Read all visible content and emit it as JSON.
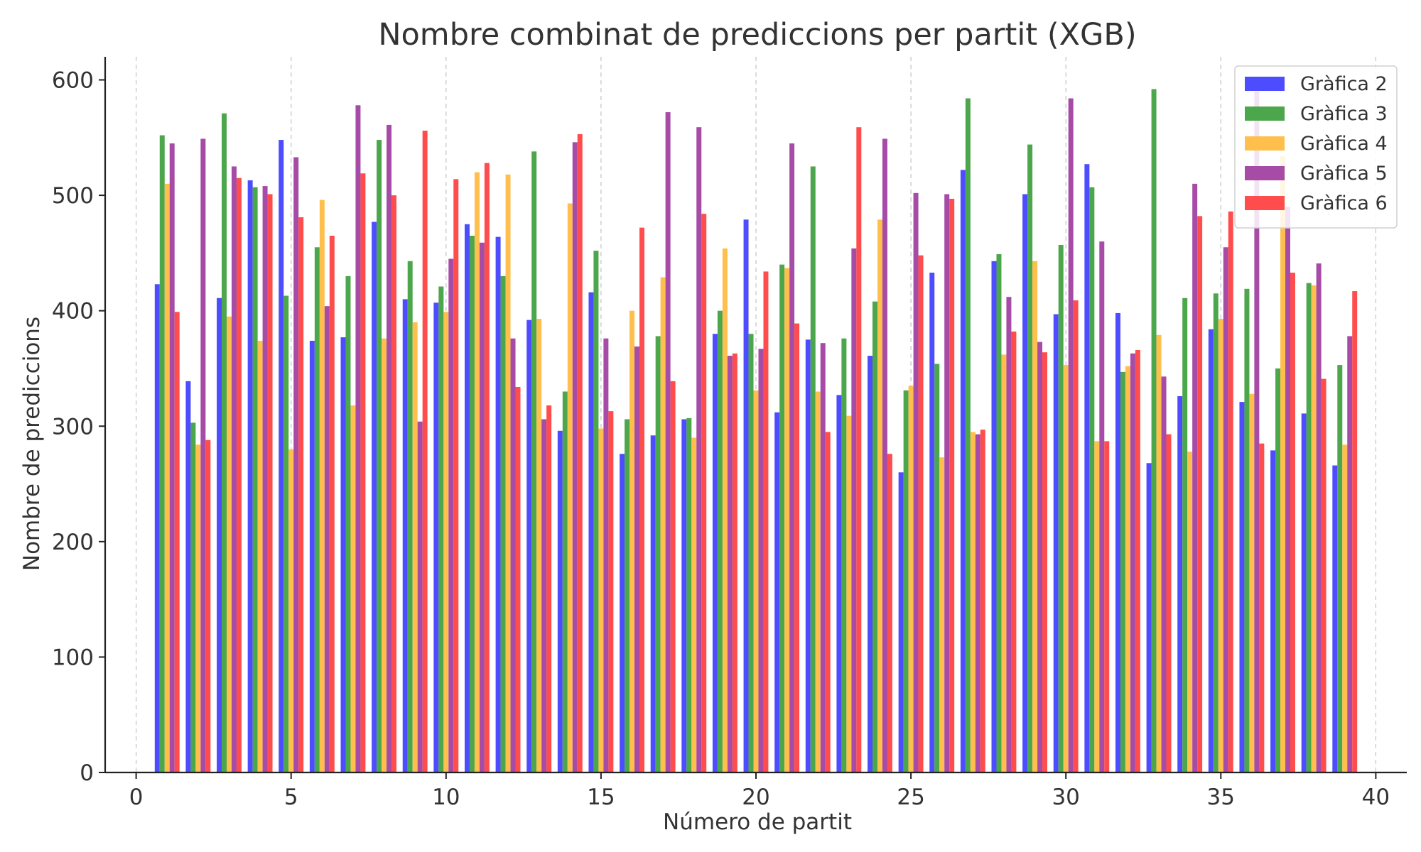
{
  "chart_data": {
    "type": "bar",
    "title": "Nombre combinat de prediccions per partit (XGB)",
    "xlabel": "Número de partit",
    "ylabel": "Nombre de prediccions",
    "xlim": [
      -1,
      41
    ],
    "ylim": [
      0,
      620
    ],
    "xticks": [
      0,
      5,
      10,
      15,
      20,
      25,
      30,
      35,
      40
    ],
    "yticks": [
      0,
      100,
      200,
      300,
      400,
      500,
      600
    ],
    "grid": "vertical dashed",
    "legend_position": "top-right",
    "x": [
      1,
      2,
      3,
      4,
      5,
      6,
      7,
      8,
      9,
      10,
      11,
      12,
      13,
      14,
      15,
      16,
      17,
      18,
      19,
      20,
      21,
      22,
      23,
      24,
      25,
      26,
      27,
      28,
      29,
      30,
      31,
      32,
      33,
      34,
      35,
      36,
      37,
      38,
      39
    ],
    "series": [
      {
        "name": "Gràfica 2",
        "color": "#4d4dff",
        "values": [
          423,
          339,
          411,
          513,
          548,
          374,
          377,
          477,
          410,
          407,
          475,
          464,
          392,
          296,
          416,
          276,
          292,
          306,
          380,
          479,
          312,
          375,
          327,
          361,
          260,
          433,
          522,
          443,
          501,
          397,
          527,
          398,
          268,
          326,
          384,
          321,
          279,
          311,
          266
        ]
      },
      {
        "name": "Gràfica 3",
        "color": "#4ca64c",
        "values": [
          552,
          303,
          571,
          507,
          413,
          455,
          430,
          548,
          443,
          421,
          465,
          430,
          538,
          330,
          452,
          306,
          378,
          307,
          400,
          380,
          440,
          525,
          376,
          408,
          331,
          354,
          584,
          449,
          544,
          457,
          507,
          347,
          592,
          411,
          415,
          419,
          350,
          424,
          353
        ]
      },
      {
        "name": "Gràfica 4",
        "color": "#ffbf4d",
        "values": [
          510,
          284,
          395,
          374,
          280,
          496,
          318,
          376,
          390,
          399,
          520,
          518,
          393,
          493,
          298,
          400,
          429,
          290,
          454,
          331,
          437,
          330,
          309,
          479,
          335,
          273,
          295,
          362,
          443,
          353,
          287,
          352,
          379,
          278,
          393,
          328,
          534,
          422,
          284
        ]
      },
      {
        "name": "Gràfica 5",
        "color": "#a64ca6",
        "values": [
          545,
          549,
          525,
          508,
          533,
          404,
          578,
          561,
          304,
          445,
          459,
          376,
          306,
          546,
          376,
          369,
          572,
          559,
          361,
          367,
          545,
          372,
          454,
          549,
          502,
          501,
          293,
          412,
          373,
          584,
          460,
          363,
          343,
          510,
          455,
          590,
          490,
          441,
          378
        ]
      },
      {
        "name": "Gràfica 6",
        "color": "#ff4d4d",
        "values": [
          399,
          288,
          515,
          501,
          481,
          465,
          519,
          500,
          556,
          514,
          528,
          334,
          318,
          553,
          313,
          472,
          339,
          484,
          363,
          434,
          389,
          295,
          559,
          276,
          448,
          497,
          297,
          382,
          364,
          409,
          287,
          366,
          293,
          482,
          486,
          285,
          433,
          341,
          417
        ]
      }
    ]
  }
}
